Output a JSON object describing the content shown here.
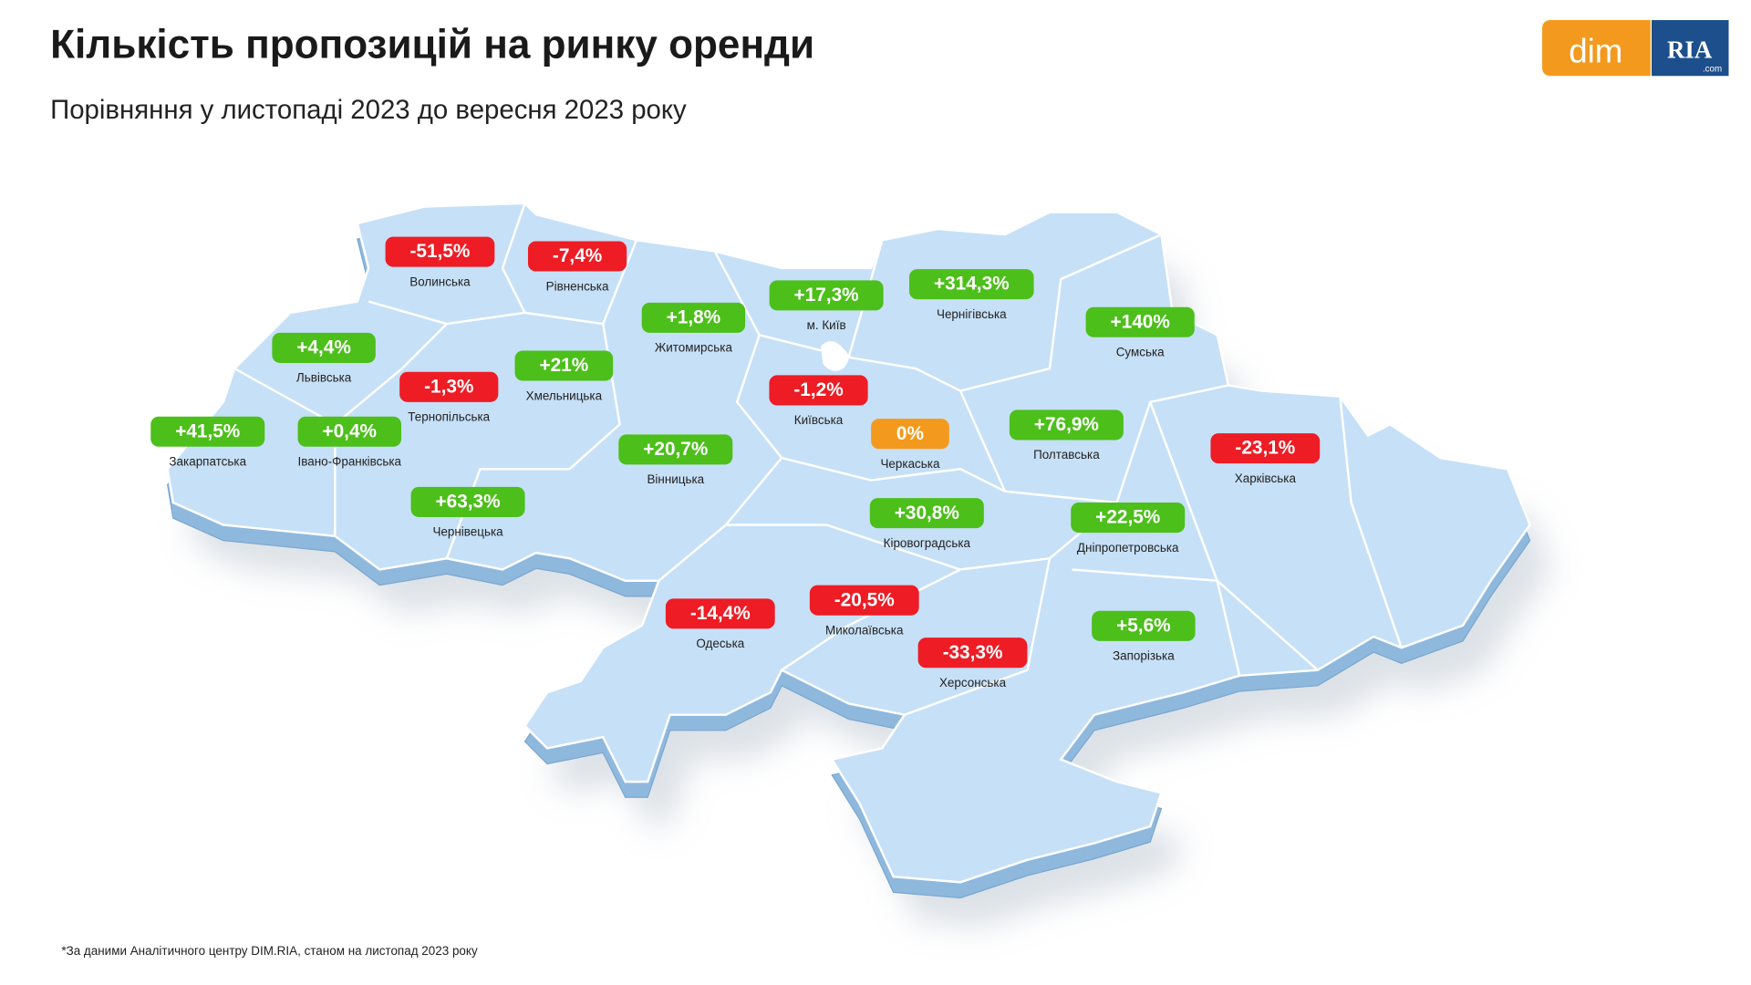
{
  "header": {
    "title": "Кількість пропозицій на ринку оренди",
    "subtitle": "Порівняння у листопаді 2023 до вересня 2023 року"
  },
  "logo": {
    "left": "dim",
    "right": "RIA",
    "suffix": ".com"
  },
  "regions": [
    {
      "name": "Волинська",
      "label": "-51,5%",
      "color": "#ee1c24"
    },
    {
      "name": "Рівненська",
      "label": "-7,4%",
      "color": "#ee1c24"
    },
    {
      "name": "Житомирська",
      "label": "+1,8%",
      "color": "#4cbf1a"
    },
    {
      "name": "м. Київ",
      "label": "+17,3%",
      "color": "#4cbf1a"
    },
    {
      "name": "Чернігівська",
      "label": "+314,3%",
      "color": "#4cbf1a"
    },
    {
      "name": "Сумська",
      "label": "+140%",
      "color": "#4cbf1a"
    },
    {
      "name": "Львівська",
      "label": "+4,4%",
      "color": "#4cbf1a"
    },
    {
      "name": "Хмельницька",
      "label": "+21%",
      "color": "#4cbf1a"
    },
    {
      "name": "Тернопільська",
      "label": "-1,3%",
      "color": "#ee1c24"
    },
    {
      "name": "Київська",
      "label": "-1,2%",
      "color": "#ee1c24"
    },
    {
      "name": "Закарпатська",
      "label": "+41,5%",
      "color": "#4cbf1a"
    },
    {
      "name": "Івано-Франківська",
      "label": "+0,4%",
      "color": "#4cbf1a"
    },
    {
      "name": "Черкаська",
      "label": "0%",
      "color": "#f39a1e"
    },
    {
      "name": "Полтавська",
      "label": "+76,9%",
      "color": "#4cbf1a"
    },
    {
      "name": "Харківська",
      "label": "-23,1%",
      "color": "#ee1c24"
    },
    {
      "name": "Вінницька",
      "label": "+20,7%",
      "color": "#4cbf1a"
    },
    {
      "name": "Чернівецька",
      "label": "+63,3%",
      "color": "#4cbf1a"
    },
    {
      "name": "Кіровоградська",
      "label": "+30,8%",
      "color": "#4cbf1a"
    },
    {
      "name": "Дніпропетровська",
      "label": "+22,5%",
      "color": "#4cbf1a"
    },
    {
      "name": "Одеська",
      "label": "-14,4%",
      "color": "#ee1c24"
    },
    {
      "name": "Миколаївська",
      "label": "-20,5%",
      "color": "#ee1c24"
    },
    {
      "name": "Херсонська",
      "label": "-33,3%",
      "color": "#ee1c24"
    },
    {
      "name": "Запорізька",
      "label": "+5,6%",
      "color": "#4cbf1a"
    }
  ],
  "footnote": "*За даними Аналітичного центру DIM.RIA, станом на листопад 2023 року"
}
